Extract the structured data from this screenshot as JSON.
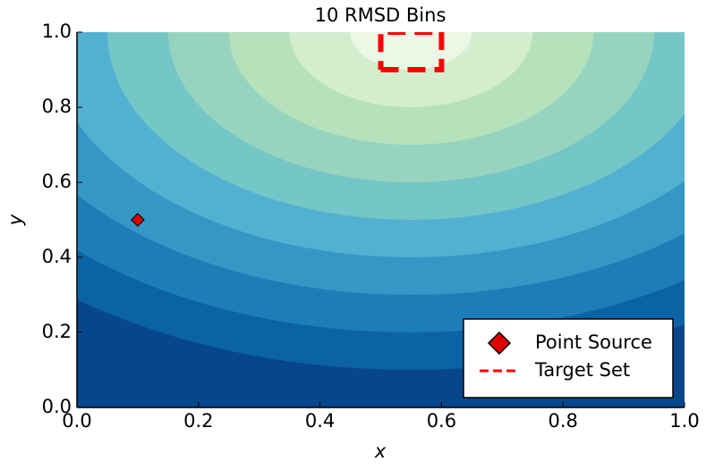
{
  "chart_data": {
    "type": "contour",
    "title": "10 RMSD Bins",
    "x_label": "x",
    "y_label": "y",
    "xlim": [
      0,
      1
    ],
    "ylim": [
      0,
      1
    ],
    "xticks": [
      {
        "value": 0,
        "label": "0.0"
      },
      {
        "value": 0.2,
        "label": "0.2"
      },
      {
        "value": 0.4,
        "label": "0.4"
      },
      {
        "value": 0.6,
        "label": "0.6"
      },
      {
        "value": 0.8,
        "label": "0.8"
      },
      {
        "value": 1,
        "label": "1.0"
      }
    ],
    "yticks": [
      {
        "value": 0,
        "label": "0.0"
      },
      {
        "value": 0.2,
        "label": "0.2"
      },
      {
        "value": 0.4,
        "label": "0.4"
      },
      {
        "value": 0.6,
        "label": "0.6"
      },
      {
        "value": 0.8,
        "label": "0.8"
      },
      {
        "value": 1,
        "label": "1.0"
      }
    ],
    "contour": {
      "center_x": 0.55,
      "center_y": 1.0,
      "levels": [
        0.9,
        0.8,
        0.7,
        0.6,
        0.5,
        0.4,
        0.3,
        0.2,
        0.1
      ],
      "colors": [
        "#08468b",
        "#0b62a4",
        "#1d7eb7",
        "#3597c6",
        "#52b0d1",
        "#74c6c7",
        "#96d4c0",
        "#b5e1bb",
        "#d3eecd",
        "#ecf7e5"
      ]
    },
    "series": [
      {
        "name": "Point Source",
        "color": "#e00000",
        "x": [
          0.1
        ],
        "y": [
          0.5
        ]
      },
      {
        "name": "Target Set",
        "color": "#ff0000",
        "x": [
          0.5,
          0.6,
          0.6,
          0.5,
          0.5
        ],
        "y": [
          0.9,
          0.9,
          1.0,
          1.0,
          0.9
        ]
      }
    ],
    "legend": "lower right"
  }
}
